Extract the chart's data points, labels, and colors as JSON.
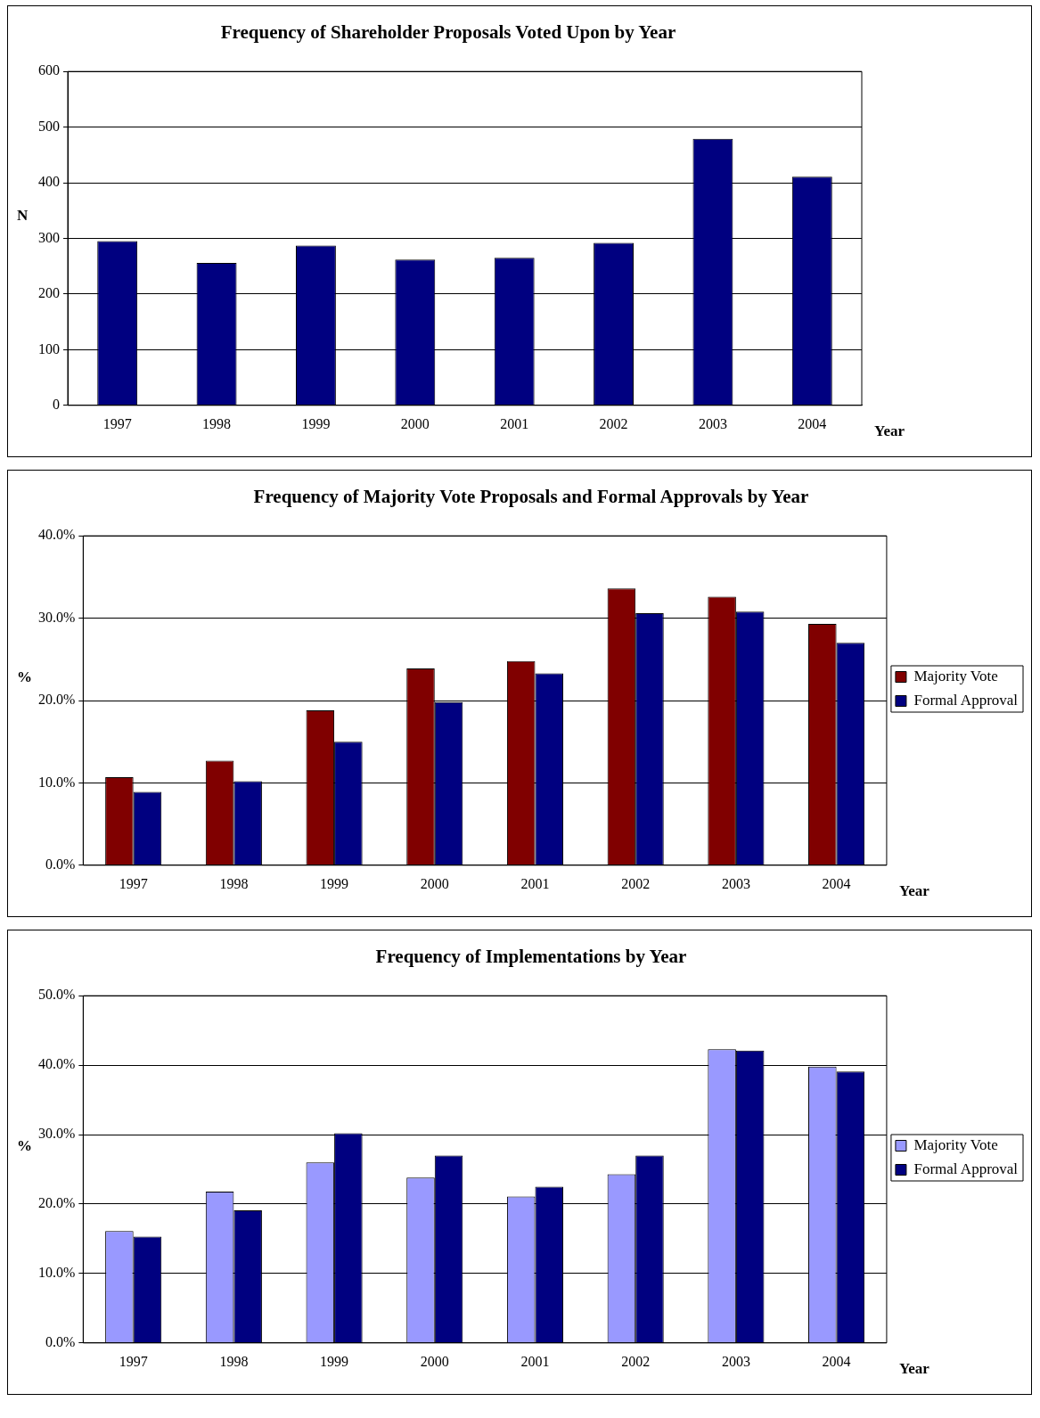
{
  "chart_data": [
    {
      "type": "bar",
      "title": "Frequency of Shareholder Proposals Voted Upon by Year",
      "xlabel": "Year",
      "ylabel": "N",
      "categories": [
        "1997",
        "1998",
        "1999",
        "2000",
        "2001",
        "2002",
        "2003",
        "2004"
      ],
      "values": [
        295,
        256,
        287,
        262,
        265,
        292,
        479,
        411
      ],
      "color": "#000080",
      "ylim": [
        0,
        600
      ],
      "yticks": [
        0,
        100,
        200,
        300,
        400,
        500,
        600
      ],
      "grid": "y",
      "legend": false
    },
    {
      "type": "bar",
      "title": "Frequency of Majority Vote Proposals and Formal Approvals by Year",
      "xlabel": "Year",
      "ylabel": "%",
      "categories": [
        "1997",
        "1998",
        "1999",
        "2000",
        "2001",
        "2002",
        "2003",
        "2004"
      ],
      "series": [
        {
          "name": "Majority Vote",
          "color": "#800000",
          "values": [
            10.7,
            12.7,
            18.8,
            23.9,
            24.8,
            33.6,
            32.6,
            29.3
          ]
        },
        {
          "name": "Formal Approval",
          "color": "#000080",
          "values": [
            8.9,
            10.2,
            15.0,
            19.8,
            23.3,
            30.6,
            30.8,
            27.0
          ]
        }
      ],
      "ylim": [
        0,
        40
      ],
      "yticks": [
        {
          "value": 0,
          "label": "0.0%"
        },
        {
          "value": 10,
          "label": "10.0%"
        },
        {
          "value": 20,
          "label": "20.0%"
        },
        {
          "value": 30,
          "label": "30.0%"
        },
        {
          "value": 40,
          "label": "40.0%"
        }
      ],
      "grid": "y",
      "legend": "right"
    },
    {
      "type": "bar",
      "title": "Frequency of Implementations by Year",
      "xlabel": "Year",
      "ylabel": "%",
      "categories": [
        "1997",
        "1998",
        "1999",
        "2000",
        "2001",
        "2002",
        "2003",
        "2004"
      ],
      "series": [
        {
          "name": "Majority Vote",
          "color": "#9999ff",
          "values": [
            16.1,
            21.8,
            26.0,
            23.8,
            21.1,
            24.3,
            42.3,
            39.8
          ]
        },
        {
          "name": "Formal Approval",
          "color": "#000080",
          "values": [
            15.3,
            19.1,
            30.2,
            27.0,
            22.5,
            27.0,
            42.1,
            39.1
          ]
        }
      ],
      "ylim": [
        0,
        50
      ],
      "yticks": [
        {
          "value": 0,
          "label": "0.0%"
        },
        {
          "value": 10,
          "label": "10.0%"
        },
        {
          "value": 20,
          "label": "20.0%"
        },
        {
          "value": 30,
          "label": "30.0%"
        },
        {
          "value": 40,
          "label": "40.0%"
        },
        {
          "value": 50,
          "label": "50.0%"
        }
      ],
      "grid": "y",
      "legend": "right"
    }
  ]
}
